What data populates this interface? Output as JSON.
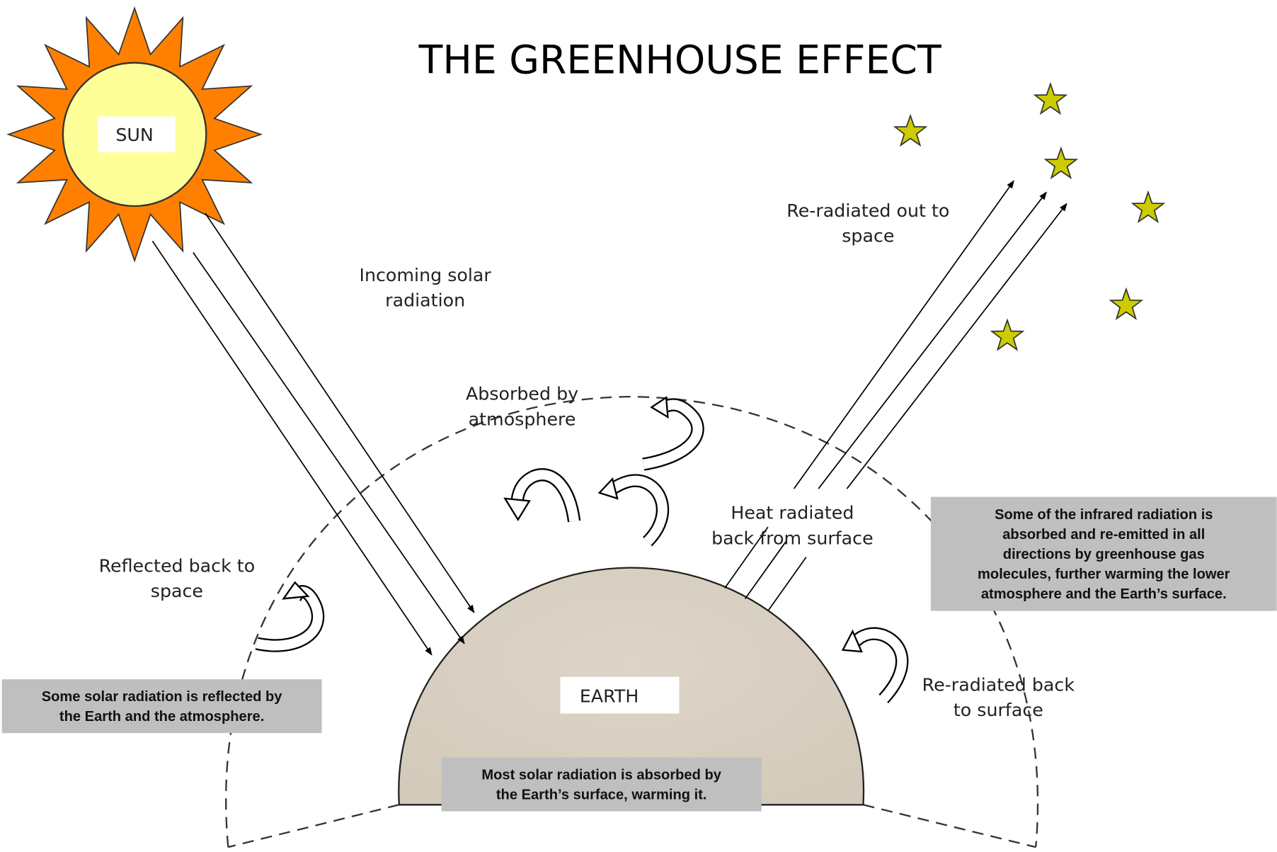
{
  "title": "THE GREENHOUSE EFFECT",
  "sun": {
    "label": "SUN"
  },
  "earth": {
    "label": "EARTH"
  },
  "labels": [
    {
      "lines": [
        "Incoming solar",
        "radiation"
      ]
    },
    {
      "lines": [
        "Absorbed by",
        "atmosphere"
      ]
    },
    {
      "lines": [
        "Re-radiated out to",
        "space"
      ]
    },
    {
      "lines": [
        "Heat radiated",
        "back from surface"
      ]
    },
    {
      "lines": [
        "Reflected back to",
        "space"
      ]
    },
    {
      "lines": [
        "Re-radiated back",
        "to surface"
      ]
    }
  ],
  "notes": [
    {
      "lines": [
        "Some solar radiation is reflected by",
        "the Earth and the atmosphere."
      ]
    },
    {
      "lines": [
        "Most solar radiation is absorbed by",
        "the Earth’s surface, warming it."
      ]
    },
    {
      "lines": [
        "Some of the infrared radiation is",
        "absorbed and re-emitted in all",
        "directions by greenhouse gas",
        "molecules, further warming the lower",
        "atmosphere and the Earth’s surface."
      ]
    }
  ]
}
